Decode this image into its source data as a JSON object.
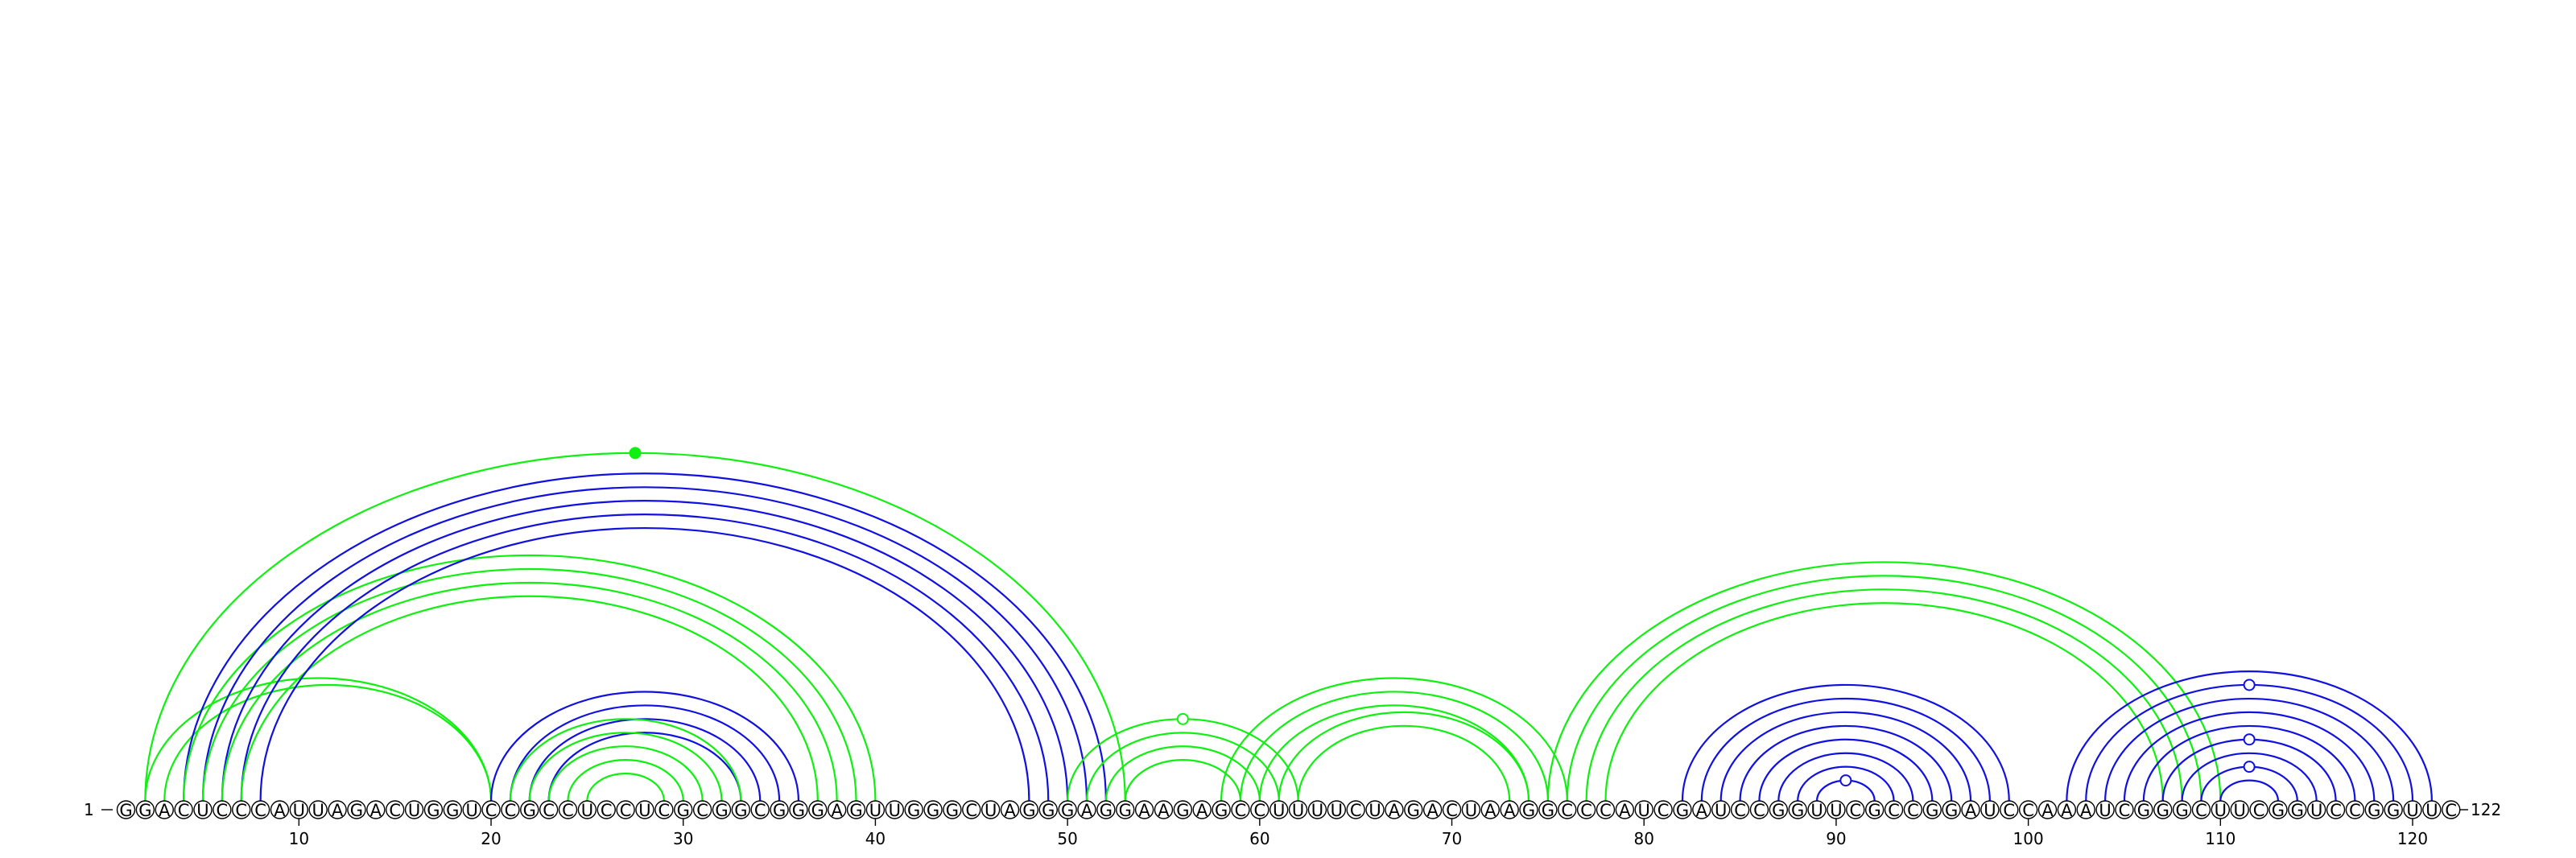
{
  "sequence": "GGACUCCCAUUAGACUGGUCCGCCUCCUCGCGGCGGGAGUUGGGCUAGGGAGGAAGAGCCUUUUCUAGACUAAGGCCCAUCGAUCCGGUUCGCCGGAUCCAAAUCGGGCUUCGGUCCGGUUC",
  "start_label": "1",
  "end_label": "122",
  "ticks": [
    10,
    20,
    30,
    40,
    50,
    60,
    70,
    80,
    90,
    100,
    110,
    120
  ],
  "colors": {
    "blue": "#1010e0",
    "green": "#10f010"
  },
  "arcs": [
    {
      "i": 2,
      "j": 53,
      "color": "green",
      "marker": "filled"
    },
    {
      "i": 2,
      "j": 20,
      "color": "green"
    },
    {
      "i": 3,
      "j": 20,
      "color": "green"
    },
    {
      "i": 4,
      "j": 52,
      "color": "blue"
    },
    {
      "i": 4,
      "j": 40,
      "color": "green"
    },
    {
      "i": 5,
      "j": 51,
      "color": "blue"
    },
    {
      "i": 5,
      "j": 39,
      "color": "green"
    },
    {
      "i": 6,
      "j": 50,
      "color": "blue"
    },
    {
      "i": 6,
      "j": 38,
      "color": "green"
    },
    {
      "i": 7,
      "j": 49,
      "color": "blue"
    },
    {
      "i": 7,
      "j": 37,
      "color": "green"
    },
    {
      "i": 8,
      "j": 48,
      "color": "blue"
    },
    {
      "i": 20,
      "j": 36,
      "color": "blue"
    },
    {
      "i": 21,
      "j": 35,
      "color": "blue"
    },
    {
      "i": 22,
      "j": 34,
      "color": "blue"
    },
    {
      "i": 23,
      "j": 33,
      "color": "blue"
    },
    {
      "i": 21,
      "j": 33,
      "color": "green"
    },
    {
      "i": 22,
      "j": 32,
      "color": "green"
    },
    {
      "i": 23,
      "j": 31,
      "color": "green"
    },
    {
      "i": 24,
      "j": 30,
      "color": "green"
    },
    {
      "i": 25,
      "j": 29,
      "color": "green"
    },
    {
      "i": 50,
      "j": 62,
      "color": "green",
      "marker": "open"
    },
    {
      "i": 51,
      "j": 61,
      "color": "green"
    },
    {
      "i": 52,
      "j": 60,
      "color": "green"
    },
    {
      "i": 53,
      "j": 59,
      "color": "green"
    },
    {
      "i": 58,
      "j": 76,
      "color": "green"
    },
    {
      "i": 59,
      "j": 75,
      "color": "green"
    },
    {
      "i": 60,
      "j": 74,
      "color": "green"
    },
    {
      "i": 61,
      "j": 74,
      "color": "green"
    },
    {
      "i": 62,
      "j": 73,
      "color": "green"
    },
    {
      "i": 75,
      "j": 110,
      "color": "green"
    },
    {
      "i": 76,
      "j": 109,
      "color": "green"
    },
    {
      "i": 77,
      "j": 108,
      "color": "green"
    },
    {
      "i": 78,
      "j": 107,
      "color": "green"
    },
    {
      "i": 82,
      "j": 99,
      "color": "blue"
    },
    {
      "i": 83,
      "j": 98,
      "color": "blue"
    },
    {
      "i": 84,
      "j": 97,
      "color": "blue"
    },
    {
      "i": 85,
      "j": 96,
      "color": "blue"
    },
    {
      "i": 86,
      "j": 95,
      "color": "blue"
    },
    {
      "i": 87,
      "j": 94,
      "color": "blue"
    },
    {
      "i": 88,
      "j": 93,
      "color": "blue"
    },
    {
      "i": 89,
      "j": 92,
      "color": "blue",
      "marker": "open"
    },
    {
      "i": 102,
      "j": 121,
      "color": "blue"
    },
    {
      "i": 103,
      "j": 120,
      "color": "blue",
      "marker": "open"
    },
    {
      "i": 104,
      "j": 119,
      "color": "blue"
    },
    {
      "i": 105,
      "j": 118,
      "color": "blue"
    },
    {
      "i": 106,
      "j": 117,
      "color": "blue"
    },
    {
      "i": 107,
      "j": 116,
      "color": "blue",
      "marker": "open"
    },
    {
      "i": 108,
      "j": 115,
      "color": "blue"
    },
    {
      "i": 109,
      "j": 114,
      "color": "blue",
      "marker": "open"
    },
    {
      "i": 110,
      "j": 113,
      "color": "blue"
    }
  ]
}
